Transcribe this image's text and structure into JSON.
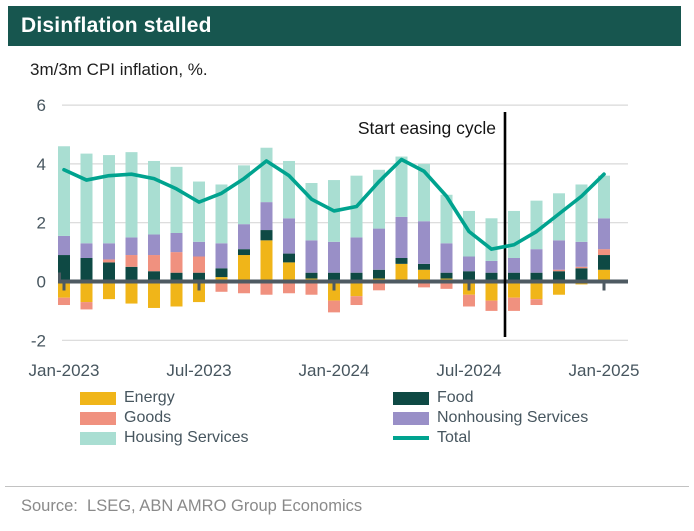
{
  "title": "Disinflation stalled",
  "subtitle": "3m/3m CPI inflation, %.",
  "source": "Source:  LSEG, ABN AMRO Group Economics",
  "legend": {
    "items": [
      {
        "label": "Energy",
        "color": "#F0B519",
        "shape": "box"
      },
      {
        "label": "Goods",
        "color": "#F0917F",
        "shape": "box"
      },
      {
        "label": "Housing Services",
        "color": "#A9DED2",
        "shape": "box"
      },
      {
        "label": "Food",
        "color": "#0E4944",
        "shape": "box"
      },
      {
        "label": "Nonhousing Services",
        "color": "#998FC7",
        "shape": "box"
      },
      {
        "label": "Total",
        "color": "#00A38F",
        "shape": "line"
      }
    ]
  },
  "chart_data": {
    "type": "bar",
    "stacked": true,
    "title": "Disinflation stalled",
    "subtitle": "3m/3m CPI inflation, %.",
    "ylim": [
      -2,
      6
    ],
    "yticks": [
      6,
      4,
      2,
      0,
      -2
    ],
    "grid": "horizontal",
    "legend_position": "bottom",
    "categories": [
      "Jan-2023",
      "Feb-2023",
      "Mar-2023",
      "Apr-2023",
      "May-2023",
      "Jun-2023",
      "Jul-2023",
      "Aug-2023",
      "Sep-2023",
      "Oct-2023",
      "Nov-2023",
      "Dec-2023",
      "Jan-2024",
      "Feb-2024",
      "Mar-2024",
      "Apr-2024",
      "May-2024",
      "Jun-2024",
      "Jul-2024",
      "Aug-2024",
      "Sep-2024",
      "Oct-2024",
      "Nov-2024",
      "Dec-2024",
      "Jan-2025"
    ],
    "xtick_indices": [
      0,
      6,
      12,
      18,
      24
    ],
    "xtick_labels": [
      "Jan-2023",
      "Jul-2023",
      "Jan-2024",
      "Jul-2024",
      "Jan-2025"
    ],
    "series": [
      {
        "name": "Energy",
        "color": "#F0B519",
        "values": [
          -0.55,
          -0.7,
          -0.6,
          -0.75,
          -0.9,
          -0.85,
          -0.7,
          0.15,
          0.9,
          1.4,
          0.65,
          0.1,
          -0.65,
          -0.5,
          0.1,
          0.6,
          0.4,
          0.1,
          -0.45,
          -0.65,
          -0.55,
          -0.6,
          -0.45,
          -0.1,
          0.4
        ]
      },
      {
        "name": "Food",
        "color": "#0E4944",
        "values": [
          0.9,
          0.8,
          0.65,
          0.5,
          0.35,
          0.3,
          0.3,
          0.3,
          0.2,
          0.35,
          0.3,
          0.2,
          0.3,
          0.3,
          0.3,
          0.2,
          0.2,
          0.2,
          0.35,
          0.3,
          0.3,
          0.3,
          0.35,
          0.45,
          0.5
        ]
      },
      {
        "name": "Goods",
        "color": "#F0917F",
        "values": [
          -0.25,
          -0.25,
          0.1,
          0.4,
          0.55,
          0.7,
          0.55,
          -0.35,
          -0.4,
          -0.45,
          -0.4,
          -0.45,
          -0.4,
          -0.3,
          -0.3,
          -0.05,
          -0.2,
          -0.25,
          -0.4,
          -0.35,
          -0.45,
          -0.2,
          0.05,
          0.05,
          0.2
        ]
      },
      {
        "name": "Nonhousing Services",
        "color": "#998FC7",
        "values": [
          0.65,
          0.5,
          0.55,
          0.6,
          0.7,
          0.65,
          0.5,
          0.85,
          0.85,
          0.95,
          1.2,
          1.1,
          1.05,
          1.2,
          1.4,
          1.4,
          1.45,
          1.0,
          0.5,
          0.4,
          0.5,
          0.8,
          1.0,
          0.85,
          1.05
        ]
      },
      {
        "name": "Housing Services",
        "color": "#A9DED2",
        "values": [
          3.05,
          3.05,
          3.0,
          2.9,
          2.5,
          2.25,
          2.05,
          2.0,
          2.0,
          1.85,
          1.95,
          1.95,
          2.1,
          2.1,
          2.0,
          2.05,
          1.95,
          1.65,
          1.55,
          1.45,
          1.6,
          1.65,
          1.6,
          1.95,
          1.45
        ]
      }
    ],
    "line_series": {
      "name": "Total",
      "color": "#00A38F",
      "values": [
        3.8,
        3.45,
        3.6,
        3.65,
        3.5,
        3.15,
        2.7,
        3.0,
        3.5,
        4.1,
        3.6,
        2.8,
        2.4,
        2.55,
        3.4,
        4.15,
        3.75,
        2.9,
        1.7,
        1.1,
        1.25,
        1.7,
        2.3,
        2.9,
        3.65
      ]
    },
    "annotation": {
      "text": "Start easing cycle",
      "x_index": 19.6,
      "between_categories": [
        "Aug-2024",
        "Sep-2024"
      ]
    }
  }
}
